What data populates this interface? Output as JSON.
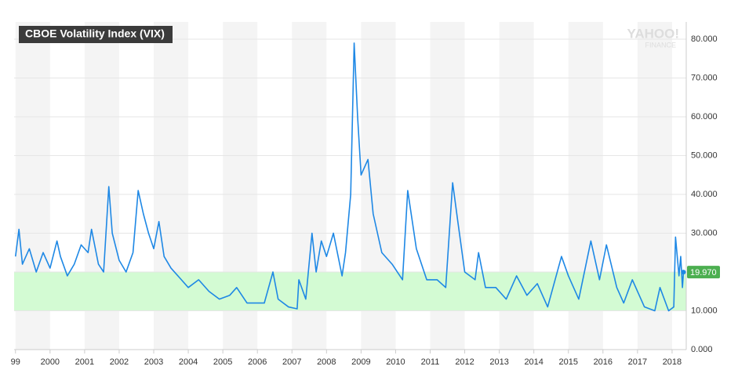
{
  "chart_data": {
    "type": "line",
    "title": "CBOE Volatility Index (VIX)",
    "watermark": [
      "YAHOO!",
      "FINANCE"
    ],
    "x": [
      1999.0,
      1999.1,
      1999.2,
      1999.4,
      1999.6,
      1999.8,
      2000.0,
      2000.2,
      2000.3,
      2000.5,
      2000.7,
      2000.9,
      2001.1,
      2001.2,
      2001.4,
      2001.55,
      2001.7,
      2001.8,
      2002.0,
      2002.2,
      2002.4,
      2002.55,
      2002.7,
      2002.85,
      2003.0,
      2003.15,
      2003.3,
      2003.5,
      2003.8,
      2004.0,
      2004.3,
      2004.6,
      2004.9,
      2005.2,
      2005.4,
      2005.7,
      2005.9,
      2006.2,
      2006.45,
      2006.6,
      2006.9,
      2007.15,
      2007.2,
      2007.4,
      2007.58,
      2007.7,
      2007.85,
      2008.0,
      2008.2,
      2008.45,
      2008.55,
      2008.7,
      2008.8,
      2008.9,
      2009.0,
      2009.2,
      2009.35,
      2009.6,
      2009.9,
      2010.2,
      2010.35,
      2010.6,
      2010.9,
      2011.2,
      2011.45,
      2011.65,
      2011.8,
      2012.0,
      2012.3,
      2012.4,
      2012.6,
      2012.9,
      2013.2,
      2013.5,
      2013.8,
      2014.1,
      2014.4,
      2014.8,
      2015.0,
      2015.3,
      2015.65,
      2015.9,
      2016.1,
      2016.4,
      2016.6,
      2016.85,
      2017.2,
      2017.5,
      2017.65,
      2017.9,
      2018.05,
      2018.1,
      2018.2,
      2018.25,
      2018.3,
      2018.33
    ],
    "series": [
      {
        "name": "VIX",
        "color": "#1e88e5",
        "values": [
          24,
          31,
          22,
          26,
          20,
          25,
          21,
          28,
          24,
          19,
          22,
          27,
          25,
          31,
          22,
          20,
          42,
          30,
          23,
          20,
          25,
          41,
          35,
          30,
          26,
          33,
          24,
          21,
          18,
          16,
          18,
          15,
          13,
          14,
          16,
          12,
          12,
          12,
          20,
          13,
          11,
          10.5,
          18,
          13,
          30,
          20,
          28,
          24,
          30,
          19,
          25,
          40,
          79,
          60,
          45,
          49,
          35,
          25,
          22,
          18,
          41,
          26,
          18,
          18,
          16,
          43,
          33,
          20,
          18,
          25,
          16,
          16,
          13,
          19,
          14,
          17,
          11,
          24,
          19,
          13,
          28,
          18,
          27,
          16,
          12,
          18,
          11,
          10,
          16,
          10,
          11,
          29,
          19,
          24,
          16,
          19.97
        ]
      }
    ],
    "band": [
      10,
      20
    ],
    "band_color": "#d3fbd3",
    "last_label": {
      "value": 19.97,
      "label": "19.970"
    },
    "xlim": [
      1998.96,
      2018.41
    ],
    "ylim": [
      0,
      80
    ],
    "xticks": [
      {
        "value": 1999,
        "label": "99"
      },
      2000,
      2001,
      2002,
      2003,
      2004,
      2005,
      2006,
      2007,
      2008,
      2009,
      2010,
      2011,
      2012,
      2013,
      2014,
      2015,
      2016,
      2017,
      2018
    ],
    "yticks": [
      {
        "value": 0,
        "label": "0.000"
      },
      {
        "value": 10,
        "label": "10.000"
      },
      {
        "value": 20,
        "label": "20.000"
      },
      {
        "value": 30,
        "label": "30.000"
      },
      {
        "value": 40,
        "label": "40.000"
      },
      {
        "value": 50,
        "label": "50.000"
      },
      {
        "value": 60,
        "label": "60.000"
      },
      {
        "value": 70,
        "label": "70.000"
      },
      {
        "value": 80,
        "label": "80.000"
      }
    ],
    "grid": true
  }
}
